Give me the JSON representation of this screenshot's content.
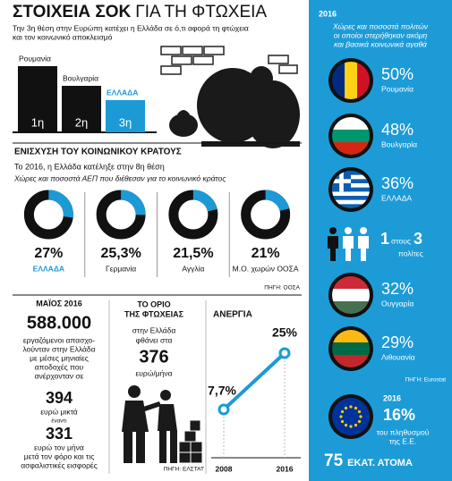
{
  "header": {
    "title_bold": "ΣΤΟΙΧΕΙΑ ΣΟΚ",
    "title_light": "ΓΙΑ ΤΗ ΦΤΩΧΕΙΑ",
    "subtitle": [
      "Την 3η θέση στην Ευρώπη κατέχει η Ελλάδα σε ό,τι αφορά τη φτώχεια",
      "και τον κοινωνικό αποκλεισμό"
    ]
  },
  "ranking": [
    {
      "country": "Ρουμανία",
      "rank": "1η"
    },
    {
      "country": "Βουλγαρία",
      "rank": "2η"
    },
    {
      "country": "ΕΛΛΑΔΑ",
      "rank": "3η"
    }
  ],
  "chart_data": [
    {
      "type": "donut",
      "title": "ΕΝΙΣΧΥΣΗ ΤΟΥ ΚΟΙΝΩΝΙΚΟΥ ΚΡΑΤΟΥΣ",
      "subtitle": "Το 2016, η Ελλάδα κατέληξε στην 8η θέση",
      "note": "Χώρες και ποσοστά ΑΕΠ που διέθεσαν για το κοινωνικό κράτος",
      "categories": [
        "ΕΛΛΑΔΑ",
        "Γερμανία",
        "Αγγλία",
        "Μ.Ο. χωρών ΟΟΣΑ"
      ],
      "values": [
        27,
        25.3,
        21.5,
        21
      ],
      "value_labels": [
        "27%",
        "25,3%",
        "21,5%",
        "21%"
      ],
      "color": "#1b9ad6",
      "source": "ΠΗΓΗ: ΟΟΣΑ"
    },
    {
      "type": "line",
      "title": "ΑΝΕΡΓΙΑ",
      "categories": [
        "2008",
        "2016"
      ],
      "values": [
        7.7,
        25
      ],
      "value_labels": [
        "7,7%",
        "25%"
      ],
      "color": "#1b9ad6"
    }
  ],
  "wages": {
    "date": "ΜΑΪΟΣ 2016",
    "workers": "588.000",
    "text": [
      "εργαζόμενοι απασχο-",
      "λούνταν στην Ελλάδα",
      "με μέσες μηνιαίες",
      "αποδοχές που",
      "ανέρχονταν σε"
    ],
    "gross": "394",
    "gross_label": "ευρώ μικτά",
    "versus": "έναντι",
    "net": "331",
    "net_label": [
      "ευρώ τον μήνα",
      "μετά τον φόρο και τις",
      "ασφαλιστικές εισφορές"
    ]
  },
  "poverty_line": {
    "title": [
      "ΤΟ ΟΡΙΟ",
      "ΤΗΣ ΦΤΩΧΕΙΑΣ"
    ],
    "text": [
      "στην Ελλάδα",
      "φθάνει στα"
    ],
    "amount": "376",
    "unit": "ευρώ/μήνα",
    "source": "ΠΗΓΗ: ΕΛΣΤΑΤ"
  },
  "deprivation": {
    "year": "2016",
    "description": [
      "Χώρες και ποσοστά πολιτών",
      "οι οποίοι στερήθηκαν ακόμη",
      "και βασικά κοινωνικά αγαθά"
    ],
    "rows": [
      {
        "value": "50%",
        "country": "Ρουμανία"
      },
      {
        "value": "48%",
        "country": "Βουλγαρία"
      },
      {
        "value": "36%",
        "country": "ΕΛΛΑΔΑ"
      },
      {
        "value": "32%",
        "country": "Ουγγαρία"
      },
      {
        "value": "29%",
        "country": "Λιθουανία"
      }
    ],
    "ratio": {
      "one": "1",
      "of": "στους",
      "three": "3",
      "people": "πολίτες"
    },
    "source": "ΠΗΓΗ: Eurostat",
    "eu": {
      "year": "2016",
      "value": "16%",
      "label": [
        "του πληθυσμού",
        "της Ε.Ε."
      ],
      "count": "75",
      "count_label": "ΕΚΑΤ. ΑΤΟΜΑ"
    }
  }
}
